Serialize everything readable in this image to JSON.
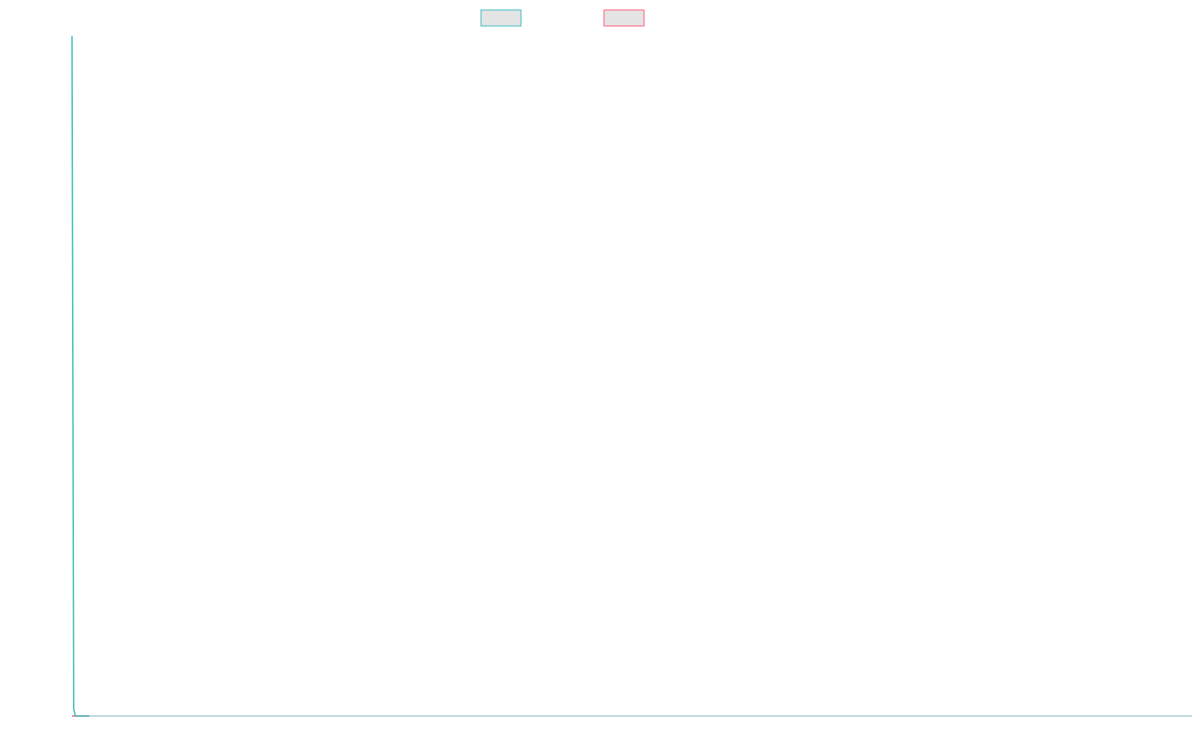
{
  "chart_data": {
    "type": "line",
    "title": "",
    "xlabel": "",
    "ylabel": "",
    "x": [
      0,
      1,
      2,
      3,
      4,
      5,
      6,
      7,
      8,
      9,
      10
    ],
    "series": [
      {
        "name": "",
        "color": "#4bc0c0",
        "fill": "#e5e5e5",
        "values": [
          100,
          1,
          0,
          0,
          0,
          0,
          0,
          0,
          0,
          0,
          0
        ]
      },
      {
        "name": "",
        "color": "#ff6384",
        "fill": "#e5e5e5",
        "values": [
          0,
          0,
          0,
          0,
          0,
          0,
          0,
          0,
          0,
          0,
          0
        ]
      }
    ],
    "xlim": [
      0,
      650
    ],
    "ylim": [
      0,
      100
    ],
    "grid": false,
    "legend_position": "top-center",
    "axis_color": "#8fb8c2"
  }
}
